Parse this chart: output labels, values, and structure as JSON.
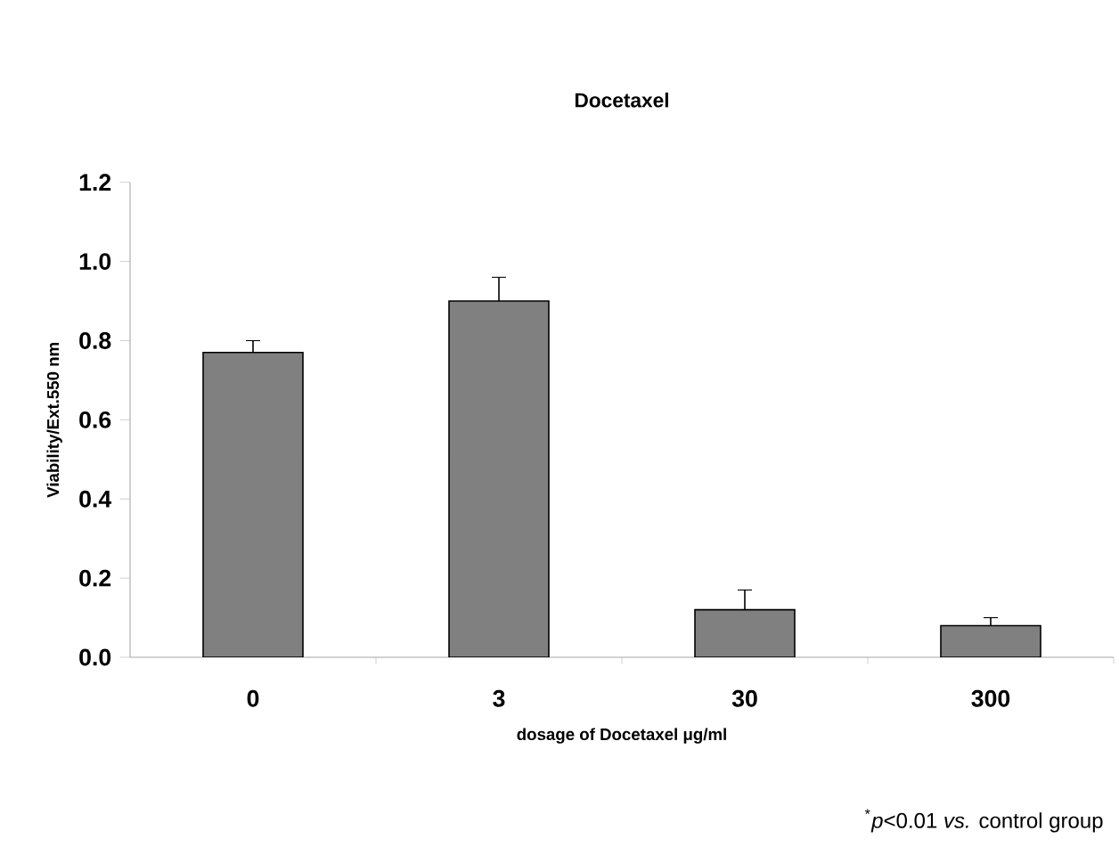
{
  "chart_data": {
    "type": "bar",
    "title": "Docetaxel",
    "xlabel": "dosage of Docetaxel μg/ml",
    "ylabel": "Viability/Ext.550 nm",
    "categories": [
      "0",
      "3",
      "30",
      "300"
    ],
    "values": [
      0.77,
      0.9,
      0.12,
      0.08
    ],
    "errors": [
      [
        0.77,
        0.8
      ],
      [
        0.9,
        0.96
      ],
      [
        0.12,
        0.17
      ],
      [
        0.08,
        0.1
      ]
    ],
    "color": "#808080",
    "ylim": [
      0,
      1.2
    ],
    "yticks": [
      {
        "value": 0,
        "label": "0.0"
      },
      0.2,
      0.4,
      0.6,
      0.8,
      {
        "value": 1,
        "label": "1.0"
      },
      1.2
    ],
    "grid": false,
    "annotations": [
      "$^{*}$*p*<0.01 *vs.* control group"
    ]
  }
}
